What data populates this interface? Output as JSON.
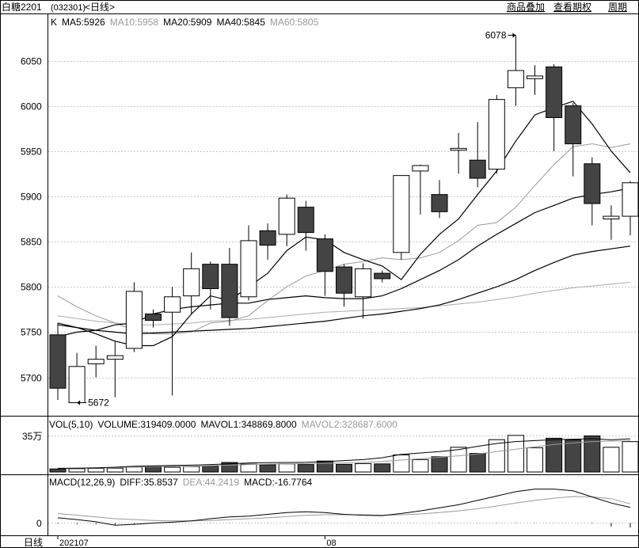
{
  "header": {
    "title": "白糖2201",
    "code": "(032301)",
    "period": "<日线>",
    "links": [
      "商品叠加",
      "查看期权",
      "周期"
    ]
  },
  "price_indicator": {
    "label": "K",
    "items": [
      {
        "text": "MA5:5926",
        "color": "#000000"
      },
      {
        "text": "MA10:5958",
        "color": "#999999"
      },
      {
        "text": "MA20:5909",
        "color": "#000000"
      },
      {
        "text": "MA40:5845",
        "color": "#000000"
      },
      {
        "text": "MA60:5805",
        "color": "#999999"
      }
    ]
  },
  "volume_indicator": {
    "items": [
      {
        "text": "VOL(5,10)",
        "color": "#000000"
      },
      {
        "text": "VOLUME:319409.0000",
        "color": "#000000"
      },
      {
        "text": "MAVOL1:348869.8000",
        "color": "#000000"
      },
      {
        "text": "MAVOL2:328687.6000",
        "color": "#999999"
      }
    ],
    "axis_label": "35万"
  },
  "macd_indicator": {
    "items": [
      {
        "text": "MACD(12,26,9)",
        "color": "#000000"
      },
      {
        "text": "DIFF:35.8537",
        "color": "#000000"
      },
      {
        "text": "DEA:44.2419",
        "color": "#999999"
      },
      {
        "text": "MACD:-16.7764",
        "color": "#000000"
      }
    ],
    "axis_label": "0"
  },
  "footer": {
    "period_label": "日线",
    "date_labels": [
      {
        "index": 0,
        "text": "202107"
      },
      {
        "index": 14,
        "text": "08"
      }
    ]
  },
  "annotations": {
    "high": "6078",
    "low": "5672"
  },
  "chart_data": {
    "type": "candlestick",
    "y_ticks": [
      5700,
      5750,
      5800,
      5850,
      5900,
      5950,
      6000,
      6050
    ],
    "ylim": [
      5660,
      6090
    ],
    "candles": [
      {
        "o": 5747,
        "h": 5760,
        "l": 5675,
        "c": 5688
      },
      {
        "o": 5672,
        "h": 5727,
        "l": 5672,
        "c": 5712
      },
      {
        "o": 5715,
        "h": 5735,
        "l": 5700,
        "c": 5720
      },
      {
        "o": 5720,
        "h": 5740,
        "l": 5678,
        "c": 5724
      },
      {
        "o": 5732,
        "h": 5805,
        "l": 5728,
        "c": 5795
      },
      {
        "o": 5770,
        "h": 5775,
        "l": 5755,
        "c": 5763
      },
      {
        "o": 5772,
        "h": 5800,
        "l": 5680,
        "c": 5789
      },
      {
        "o": 5790,
        "h": 5838,
        "l": 5770,
        "c": 5820
      },
      {
        "o": 5825,
        "h": 5828,
        "l": 5775,
        "c": 5798
      },
      {
        "o": 5825,
        "h": 5843,
        "l": 5757,
        "c": 5766
      },
      {
        "o": 5789,
        "h": 5868,
        "l": 5785,
        "c": 5851
      },
      {
        "o": 5862,
        "h": 5870,
        "l": 5830,
        "c": 5846
      },
      {
        "o": 5858,
        "h": 5902,
        "l": 5845,
        "c": 5898
      },
      {
        "o": 5888,
        "h": 5895,
        "l": 5840,
        "c": 5860
      },
      {
        "o": 5853,
        "h": 5858,
        "l": 5790,
        "c": 5817
      },
      {
        "o": 5822,
        "h": 5825,
        "l": 5778,
        "c": 5793
      },
      {
        "o": 5789,
        "h": 5826,
        "l": 5765,
        "c": 5820
      },
      {
        "o": 5815,
        "h": 5818,
        "l": 5805,
        "c": 5809
      },
      {
        "o": 5838,
        "h": 5923,
        "l": 5830,
        "c": 5923
      },
      {
        "o": 5928,
        "h": 5935,
        "l": 5880,
        "c": 5934
      },
      {
        "o": 5902,
        "h": 5918,
        "l": 5876,
        "c": 5883
      },
      {
        "o": 5951,
        "h": 5970,
        "l": 5925,
        "c": 5953
      },
      {
        "o": 5940,
        "h": 5982,
        "l": 5910,
        "c": 5920
      },
      {
        "o": 5930,
        "h": 6012,
        "l": 5925,
        "c": 6007
      },
      {
        "o": 6020,
        "h": 6078,
        "l": 6000,
        "c": 6039
      },
      {
        "o": 6030,
        "h": 6045,
        "l": 6012,
        "c": 6033
      },
      {
        "o": 6043,
        "h": 6046,
        "l": 5950,
        "c": 5987
      },
      {
        "o": 6000,
        "h": 6003,
        "l": 5922,
        "c": 5958
      },
      {
        "o": 5936,
        "h": 5943,
        "l": 5868,
        "c": 5892
      },
      {
        "o": 5875,
        "h": 5890,
        "l": 5852,
        "c": 5878
      },
      {
        "o": 5878,
        "h": 5917,
        "l": 5857,
        "c": 5915
      }
    ],
    "ma5": [
      5760,
      5755,
      5748,
      5740,
      5735,
      5735,
      5745,
      5770,
      5790,
      5785,
      5800,
      5815,
      5840,
      5855,
      5852,
      5838,
      5830,
      5823,
      5808,
      5836,
      5858,
      5875,
      5902,
      5928,
      5961,
      5990,
      5998,
      6005,
      5980,
      5950,
      5926
    ],
    "ma10": [
      5790,
      5778,
      5768,
      5760,
      5752,
      5748,
      5748,
      5750,
      5760,
      5762,
      5768,
      5785,
      5800,
      5812,
      5818,
      5825,
      5828,
      5832,
      5830,
      5832,
      5838,
      5851,
      5868,
      5871,
      5888,
      5912,
      5935,
      5955,
      5958,
      5954,
      5958
    ],
    "ma20": [
      5745,
      5750,
      5752,
      5758,
      5760,
      5770,
      5775,
      5778,
      5780,
      5782,
      5782,
      5786,
      5788,
      5790,
      5788,
      5787,
      5787,
      5790,
      5798,
      5808,
      5818,
      5830,
      5845,
      5858,
      5870,
      5882,
      5890,
      5898,
      5902,
      5905,
      5909
    ],
    "ma40": [
      5758,
      5755,
      5752,
      5750,
      5748,
      5749,
      5750,
      5751,
      5752,
      5753,
      5754,
      5756,
      5758,
      5760,
      5762,
      5765,
      5768,
      5770,
      5773,
      5776,
      5780,
      5786,
      5793,
      5800,
      5808,
      5818,
      5827,
      5835,
      5839,
      5842,
      5845
    ],
    "ma60": [
      5768,
      5765,
      5762,
      5760,
      5758,
      5758,
      5759,
      5760,
      5762,
      5763,
      5764,
      5766,
      5768,
      5770,
      5772,
      5773,
      5774,
      5775,
      5776,
      5777,
      5779,
      5781,
      5783,
      5786,
      5789,
      5793,
      5796,
      5799,
      5801,
      5803,
      5805
    ],
    "volume": {
      "axis_value": 350000,
      "max": 500000,
      "values": [
        32000,
        35000,
        38000,
        40000,
        52000,
        55000,
        50000,
        58000,
        62000,
        100000,
        82000,
        75000,
        85000,
        78000,
        115000,
        80000,
        88000,
        85000,
        180000,
        130000,
        160000,
        260000,
        195000,
        340000,
        385000,
        255000,
        355000,
        338000,
        380000,
        260000,
        319409
      ],
      "mavol1": [
        38000,
        40000,
        43000,
        50000,
        60000,
        65000,
        68000,
        72000,
        78000,
        85000,
        95000,
        98000,
        100000,
        102000,
        108000,
        120000,
        130000,
        150000,
        185000,
        200000,
        215000,
        235000,
        270000,
        300000,
        320000,
        330000,
        340000,
        345000,
        350000,
        338000,
        348870
      ],
      "mavol2": [
        38000,
        39000,
        41000,
        45000,
        52000,
        56000,
        58000,
        62000,
        66000,
        72000,
        78000,
        82000,
        86000,
        88000,
        90000,
        95000,
        100000,
        110000,
        125000,
        140000,
        155000,
        170000,
        190000,
        215000,
        240000,
        265000,
        290000,
        305000,
        320000,
        325000,
        328688
      ]
    },
    "macd": {
      "diff": [
        12,
        8,
        3,
        -5,
        -3,
        0,
        2,
        5,
        10,
        14,
        16,
        20,
        24,
        26,
        24,
        20,
        18,
        17,
        22,
        28,
        35,
        42,
        52,
        62,
        72,
        78,
        78,
        74,
        60,
        46,
        36
      ],
      "dea": [
        22,
        18,
        14,
        10,
        8,
        6,
        5,
        5,
        6,
        8,
        10,
        12,
        15,
        18,
        19,
        19,
        19,
        18,
        19,
        21,
        24,
        28,
        33,
        39,
        46,
        52,
        57,
        61,
        60,
        56,
        44
      ],
      "macd": [
        -3,
        -4,
        -5,
        -6,
        -3,
        -1,
        0,
        0,
        1,
        1,
        1,
        2,
        2,
        2,
        1,
        0,
        0,
        0,
        0,
        0,
        1,
        1,
        1,
        2,
        2,
        2,
        1,
        0,
        -2,
        -13,
        -17
      ]
    }
  }
}
